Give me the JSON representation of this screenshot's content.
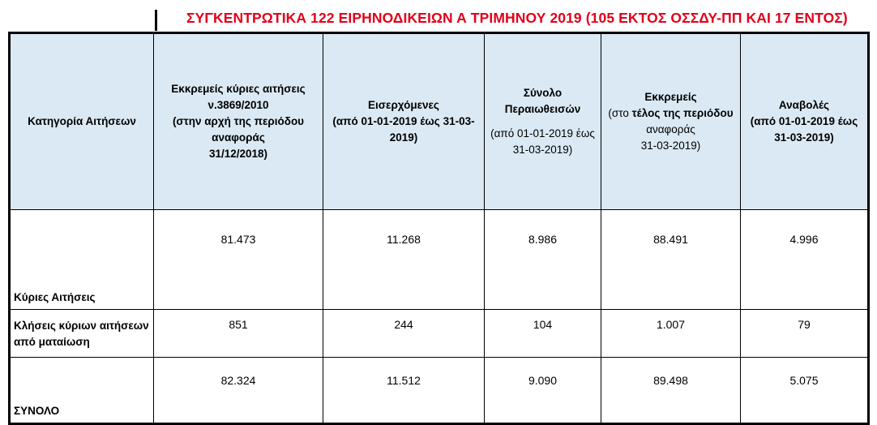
{
  "title": "ΣΥΓΚΕΝΤΡΩΤΙΚΑ 122 ΕΙΡΗΝΟΔΙΚΕΙΩΝ Α ΤΡΙΜΗΝΟΥ 2019 (105 ΕΚΤΟΣ ΟΣΣΔΥ-ΠΠ ΚΑΙ 17 ΕΝΤΟΣ)",
  "headers": {
    "category": "Κατηγορία Αιτήσεων",
    "pending_start": {
      "line1": "Εκκρεμείς κύριες αιτήσεις",
      "line2": "ν.3869/2010",
      "line3": "(στην αρχή της περιόδου",
      "line4": "αναφοράς",
      "line5": "31/12/2018)"
    },
    "incoming": {
      "line1": "Εισερχόμενες",
      "line2": "(από 01-01-2019 έως 31-03-",
      "line3": "2019)"
    },
    "completed": {
      "line1": "Σύνολο",
      "line2": "Περαιωθεισών",
      "line3": "(από 01-01-2019 έως",
      "line4": "31-03-2019)"
    },
    "pending_end": {
      "line1": "Εκκρεμείς",
      "line2a": "(στο ",
      "line2b": "τέλος της περιόδου",
      "line3": "αναφοράς",
      "line4": "31-03-2019)"
    },
    "postponed": {
      "line1": "Αναβολές",
      "line2": "(από 01-01-2019 έως",
      "line3": "31-03-2019)"
    }
  },
  "rows": [
    {
      "label": "Κύριες Αιτήσεις",
      "values": [
        "81.473",
        "11.268",
        "8.986",
        "88.491",
        "4.996"
      ]
    },
    {
      "label1": "Κλήσεις κύριων αιτήσεων",
      "label2": "από ματαίωση",
      "values": [
        "851",
        "244",
        "104",
        "1.007",
        "79"
      ]
    },
    {
      "label": "ΣΥΝΟΛΟ",
      "values": [
        "82.324",
        "11.512",
        "9.090",
        "89.498",
        "5.075"
      ]
    }
  ]
}
